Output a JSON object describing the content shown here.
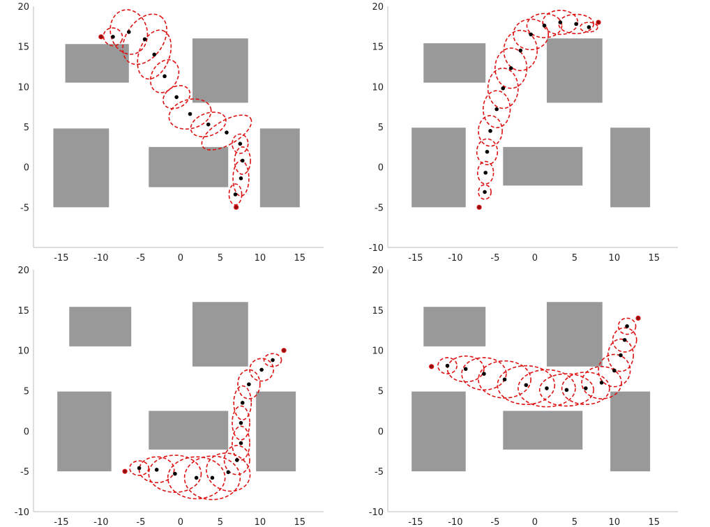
{
  "chart_data": [
    {
      "type": "scatter",
      "title": "",
      "xlabel": "",
      "ylabel": "",
      "xlim": [
        -18.5,
        18
      ],
      "ylim": [
        -10,
        20
      ],
      "xticks": [
        "-15",
        "-10",
        "-5",
        "0",
        "5",
        "10",
        "15"
      ],
      "yticks": [
        "20",
        "15",
        "10",
        "5",
        "0",
        "-5"
      ],
      "grid": false,
      "obstacles": [
        {
          "x0": -14.5,
          "x1": -6.5,
          "y0": 10.5,
          "y1": 15.3
        },
        {
          "x0": 1.5,
          "x1": 8.5,
          "y0": 8,
          "y1": 16
        },
        {
          "x0": -16,
          "x1": -9,
          "y0": -5,
          "y1": 4.8
        },
        {
          "x0": -4,
          "x1": 6,
          "y0": -2.5,
          "y1": 2.5
        },
        {
          "x0": 10,
          "x1": 15,
          "y0": -5,
          "y1": 4.8
        }
      ],
      "start": {
        "x": -10,
        "y": 16.2
      },
      "goal": {
        "x": 7,
        "y": -5
      },
      "means": [
        {
          "x": -8.5,
          "y": 16.2,
          "rx": 1.2,
          "ry": 1.1,
          "angle": 20
        },
        {
          "x": -6.5,
          "y": 16.8,
          "rx": 2.3,
          "ry": 2.8,
          "angle": -15
        },
        {
          "x": -4.5,
          "y": 15.9,
          "rx": 3.5,
          "ry": 2.3,
          "angle": -55
        },
        {
          "x": -3.3,
          "y": 14,
          "rx": 3.2,
          "ry": 1.9,
          "angle": -70
        },
        {
          "x": -2,
          "y": 11.3,
          "rx": 2.2,
          "ry": 1.6,
          "angle": -60
        },
        {
          "x": -0.5,
          "y": 8.7,
          "rx": 1.8,
          "ry": 1.3,
          "angle": -30
        },
        {
          "x": 1.2,
          "y": 6.6,
          "rx": 2.7,
          "ry": 1.8,
          "angle": -15
        },
        {
          "x": 3.5,
          "y": 5.3,
          "rx": 2.3,
          "ry": 1.4,
          "angle": -20
        },
        {
          "x": 5.8,
          "y": 4.3,
          "rx": 3.5,
          "ry": 1.5,
          "angle": -30
        },
        {
          "x": 7.5,
          "y": 2.9,
          "rx": 1,
          "ry": 1.2,
          "angle": 0
        },
        {
          "x": 7.8,
          "y": 0.8,
          "rx": 1,
          "ry": 1.7,
          "angle": 0
        },
        {
          "x": 7.6,
          "y": -1.4,
          "rx": 1,
          "ry": 2.2,
          "angle": 0
        },
        {
          "x": 6.9,
          "y": -3.4,
          "rx": 0.8,
          "ry": 1.3,
          "angle": 0
        }
      ]
    },
    {
      "type": "scatter",
      "title": "",
      "xlabel": "",
      "ylabel": "",
      "xlim": [
        -18.5,
        18
      ],
      "ylim": [
        -10,
        20
      ],
      "xticks": [
        "-15",
        "-10",
        "-5",
        "0",
        "5",
        "10",
        "15"
      ],
      "yticks": [
        "20",
        "15",
        "10",
        "5",
        "0",
        "-5",
        "-10"
      ],
      "grid": false,
      "obstacles": [
        {
          "x0": -14,
          "x1": -6.2,
          "y0": 10.5,
          "y1": 15.4
        },
        {
          "x0": 1.5,
          "x1": 8.5,
          "y0": 8,
          "y1": 16
        },
        {
          "x0": -15.5,
          "x1": -8.7,
          "y0": -5,
          "y1": 4.9
        },
        {
          "x0": -4,
          "x1": 6,
          "y0": -2.3,
          "y1": 2.5
        },
        {
          "x0": 9.5,
          "x1": 14.5,
          "y0": -5,
          "y1": 4.9
        }
      ],
      "start": {
        "x": -7,
        "y": -5
      },
      "goal": {
        "x": 8,
        "y": 18
      },
      "means": [
        {
          "x": -6.3,
          "y": -3.1,
          "rx": 0.8,
          "ry": 0.9,
          "angle": 0
        },
        {
          "x": -6.2,
          "y": -0.7,
          "rx": 1,
          "ry": 1.4,
          "angle": 0
        },
        {
          "x": -6,
          "y": 1.9,
          "rx": 1.3,
          "ry": 1.6,
          "angle": 0
        },
        {
          "x": -5.6,
          "y": 4.5,
          "rx": 1.5,
          "ry": 1.9,
          "angle": 0
        },
        {
          "x": -4.8,
          "y": 7.2,
          "rx": 1.7,
          "ry": 2.3,
          "angle": 0
        },
        {
          "x": -4,
          "y": 9.8,
          "rx": 1.9,
          "ry": 2.5,
          "angle": 0
        },
        {
          "x": -3,
          "y": 12.3,
          "rx": 2,
          "ry": 2.5,
          "angle": 0
        },
        {
          "x": -1.8,
          "y": 14.5,
          "rx": 2.1,
          "ry": 2.5,
          "angle": 0
        },
        {
          "x": -0.5,
          "y": 16.5,
          "rx": 2.2,
          "ry": 1.9,
          "angle": 0
        },
        {
          "x": 1.2,
          "y": 17.6,
          "rx": 2.2,
          "ry": 1.5,
          "angle": 0
        },
        {
          "x": 3.2,
          "y": 18,
          "rx": 2.2,
          "ry": 1.5,
          "angle": 0
        },
        {
          "x": 5.2,
          "y": 17.8,
          "rx": 2.2,
          "ry": 1.2,
          "angle": 0
        },
        {
          "x": 6.8,
          "y": 17.4,
          "rx": 1.1,
          "ry": 0.6,
          "angle": 0
        }
      ]
    },
    {
      "type": "scatter",
      "title": "",
      "xlabel": "",
      "ylabel": "",
      "xlim": [
        -18.5,
        18
      ],
      "ylim": [
        -10,
        20
      ],
      "xticks": [
        "-15",
        "-10",
        "-5",
        "0",
        "5",
        "10",
        "15"
      ],
      "yticks": [
        "20",
        "15",
        "10",
        "5",
        "0",
        "-5",
        "-10"
      ],
      "grid": false,
      "obstacles": [
        {
          "x0": -14,
          "x1": -6.2,
          "y0": 10.5,
          "y1": 15.4
        },
        {
          "x0": 1.5,
          "x1": 8.5,
          "y0": 8,
          "y1": 16
        },
        {
          "x0": -15.5,
          "x1": -8.7,
          "y0": -5,
          "y1": 4.9
        },
        {
          "x0": -4,
          "x1": 6,
          "y0": -2.3,
          "y1": 2.5
        },
        {
          "x0": 9.5,
          "x1": 14.5,
          "y0": -5,
          "y1": 4.9
        }
      ],
      "start": {
        "x": -7,
        "y": -5
      },
      "goal": {
        "x": 13,
        "y": 10
      },
      "means": [
        {
          "x": -5.2,
          "y": -4.6,
          "rx": 1.2,
          "ry": 0.9,
          "angle": 0
        },
        {
          "x": -3,
          "y": -4.8,
          "rx": 2.2,
          "ry": 1.6,
          "angle": 0
        },
        {
          "x": -0.7,
          "y": -5.3,
          "rx": 3.3,
          "ry": 2.3,
          "angle": 0
        },
        {
          "x": 2,
          "y": -5.8,
          "rx": 3.6,
          "ry": 2.6,
          "angle": 0
        },
        {
          "x": 4,
          "y": -5.8,
          "rx": 3.5,
          "ry": 2.7,
          "angle": 0
        },
        {
          "x": 6,
          "y": -5.1,
          "rx": 2.8,
          "ry": 2.3,
          "angle": 20
        },
        {
          "x": 7.1,
          "y": -3.6,
          "rx": 1.6,
          "ry": 1.8,
          "angle": 0
        },
        {
          "x": 7.6,
          "y": -1.5,
          "rx": 1.1,
          "ry": 2.1,
          "angle": 0
        },
        {
          "x": 7.6,
          "y": 1.0,
          "rx": 1.1,
          "ry": 2.1,
          "angle": 0
        },
        {
          "x": 7.8,
          "y": 3.5,
          "rx": 1.1,
          "ry": 2.1,
          "angle": 0
        },
        {
          "x": 8.6,
          "y": 5.8,
          "rx": 1.4,
          "ry": 1.8,
          "angle": 0
        },
        {
          "x": 10.2,
          "y": 7.6,
          "rx": 1.5,
          "ry": 1.4,
          "angle": 0
        },
        {
          "x": 11.6,
          "y": 8.8,
          "rx": 1.1,
          "ry": 0.8,
          "angle": 0
        }
      ]
    },
    {
      "type": "scatter",
      "title": "",
      "xlabel": "",
      "ylabel": "",
      "xlim": [
        -18.5,
        18
      ],
      "ylim": [
        -10,
        20
      ],
      "xticks": [
        "-15",
        "-10",
        "-5",
        "0",
        "5",
        "10",
        "15"
      ],
      "yticks": [
        "20",
        "15",
        "10",
        "5",
        "0",
        "-5",
        "-10"
      ],
      "grid": false,
      "obstacles": [
        {
          "x0": -14,
          "x1": -6.2,
          "y0": 10.5,
          "y1": 15.4
        },
        {
          "x0": 1.5,
          "x1": 8.5,
          "y0": 8,
          "y1": 16
        },
        {
          "x0": -15.5,
          "x1": -8.7,
          "y0": -5,
          "y1": 4.9
        },
        {
          "x0": -4,
          "x1": 6,
          "y0": -2.3,
          "y1": 2.5
        },
        {
          "x0": 9.5,
          "x1": 14.5,
          "y0": -5,
          "y1": 4.9
        }
      ],
      "start": {
        "x": -13,
        "y": 8
      },
      "goal": {
        "x": 13,
        "y": 14
      },
      "means": [
        {
          "x": -11,
          "y": 8.1,
          "rx": 1.2,
          "ry": 1.0,
          "angle": 0
        },
        {
          "x": -8.7,
          "y": 7.7,
          "rx": 2.3,
          "ry": 1.6,
          "angle": 0
        },
        {
          "x": -6.4,
          "y": 7.1,
          "rx": 2.8,
          "ry": 2.0,
          "angle": 0
        },
        {
          "x": -3.8,
          "y": 6.4,
          "rx": 3.3,
          "ry": 2.3,
          "angle": 0
        },
        {
          "x": -1.1,
          "y": 5.7,
          "rx": 3.6,
          "ry": 2.4,
          "angle": 0
        },
        {
          "x": 1.5,
          "y": 5.3,
          "rx": 3.6,
          "ry": 2.3,
          "angle": 0
        },
        {
          "x": 4,
          "y": 5.1,
          "rx": 3.4,
          "ry": 2.0,
          "angle": 0
        },
        {
          "x": 6.4,
          "y": 5.3,
          "rx": 3.0,
          "ry": 2.0,
          "angle": 0
        },
        {
          "x": 8.4,
          "y": 6.0,
          "rx": 2.5,
          "ry": 2.0,
          "angle": 0
        },
        {
          "x": 10.0,
          "y": 7.5,
          "rx": 2.0,
          "ry": 2.0,
          "angle": 0
        },
        {
          "x": 10.8,
          "y": 9.4,
          "rx": 1.6,
          "ry": 2.0,
          "angle": 0
        },
        {
          "x": 11.3,
          "y": 11.3,
          "rx": 1.5,
          "ry": 1.5,
          "angle": 0
        },
        {
          "x": 11.6,
          "y": 13.0,
          "rx": 1.1,
          "ry": 1.0,
          "angle": 0
        }
      ]
    }
  ]
}
